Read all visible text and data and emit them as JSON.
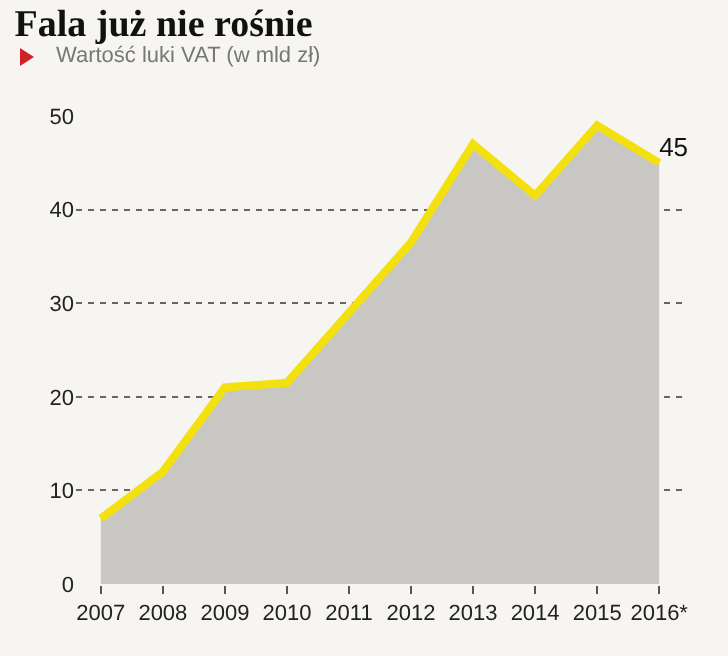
{
  "chart_data": {
    "type": "area",
    "title": "Fala już nie rośnie",
    "subtitle": "Wartość luki VAT (w mld zł)",
    "categories": [
      "2007",
      "2008",
      "2009",
      "2010",
      "2011",
      "2012",
      "2013",
      "2014",
      "2015",
      "2016*"
    ],
    "series": [
      {
        "color": "#f2e10f",
        "values": [
          7,
          12,
          21,
          21.5,
          29,
          36.5,
          47,
          41.5,
          49,
          45
        ],
        "value_labels": [
          null,
          null,
          null,
          null,
          null,
          null,
          null,
          null,
          null,
          "45"
        ]
      }
    ],
    "ylim": [
      0,
      50
    ],
    "yticks": [
      0,
      10,
      20,
      30,
      40,
      50
    ],
    "grid": "y"
  }
}
